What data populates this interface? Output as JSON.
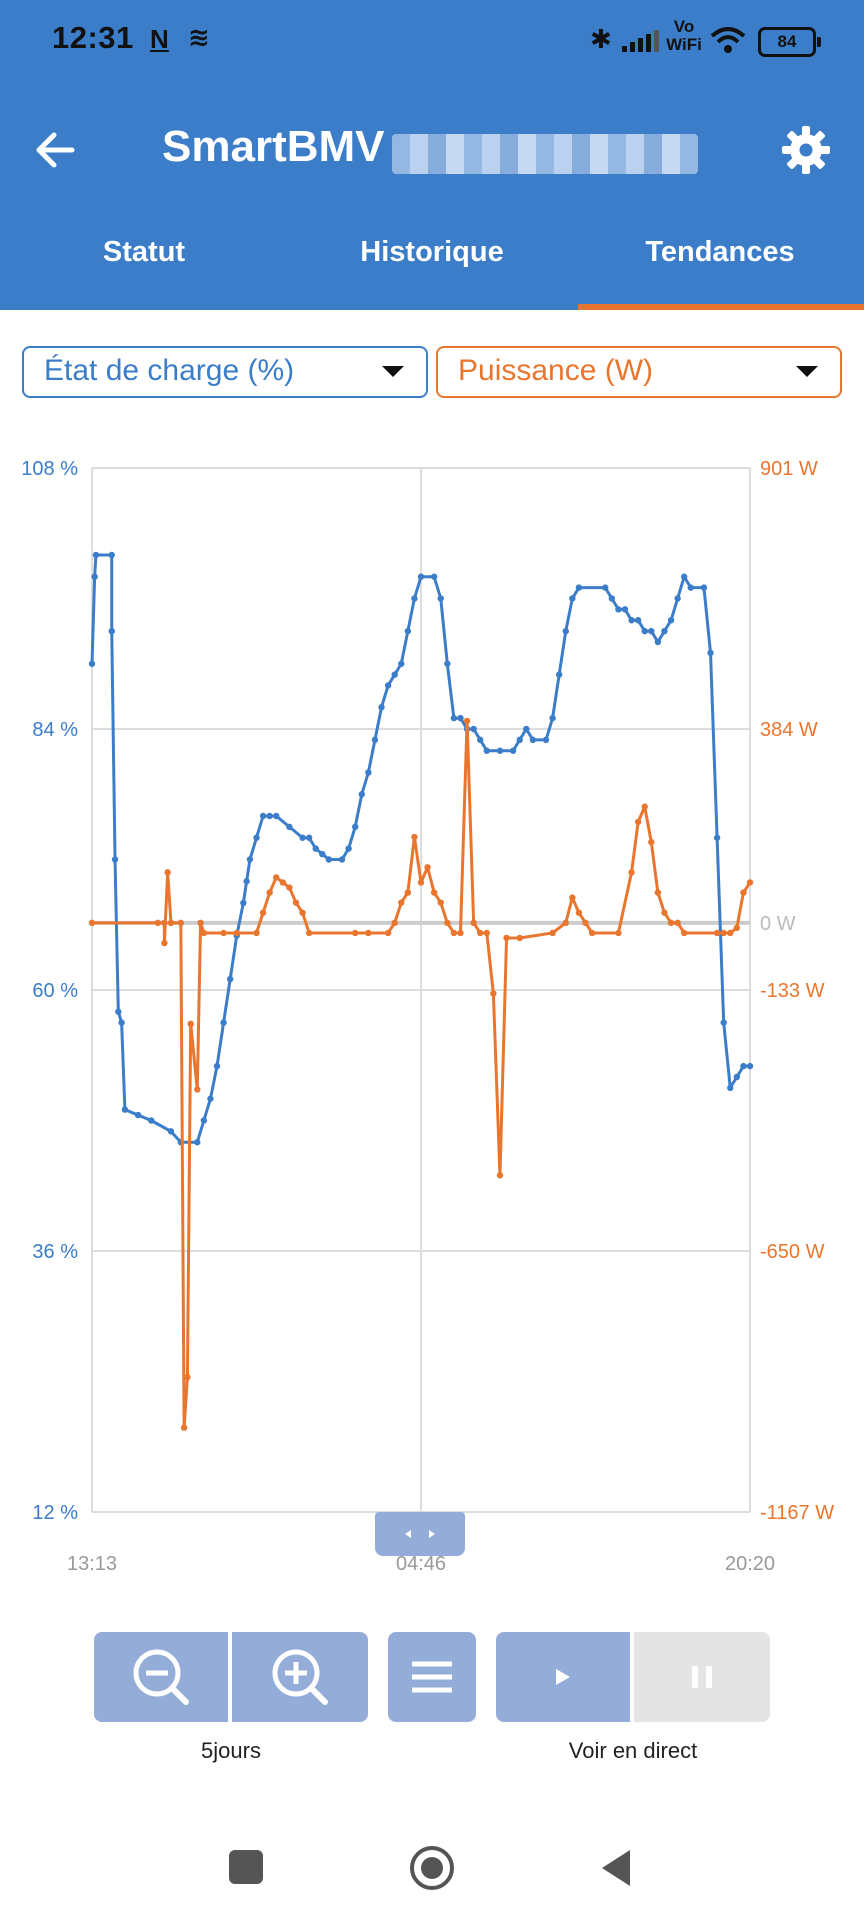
{
  "status_bar": {
    "time": "12:31",
    "notif_icons": [
      "n-icon",
      "layers-icon"
    ],
    "network": "Vo WiFi",
    "battery": "84"
  },
  "app": {
    "title": "SmartBMV",
    "back_icon": "arrow-left-icon",
    "settings_icon": "gear-icon"
  },
  "tabs": [
    {
      "label": "Statut",
      "active": false
    },
    {
      "label": "Historique",
      "active": false
    },
    {
      "label": "Tendances",
      "active": true
    }
  ],
  "selectors": {
    "left": {
      "value": "État de charge (%)",
      "color": "#3b7dc9"
    },
    "right": {
      "value": "Puissance (W)",
      "color": "#e8762f"
    }
  },
  "chart_data": {
    "type": "line",
    "x_ticks": [
      "13:13",
      "04:46",
      "20:20"
    ],
    "y_left": {
      "ticks": [
        "108 %",
        "84 %",
        "60 %",
        "36 %",
        "12 %"
      ],
      "range": [
        12,
        108
      ]
    },
    "y_right": {
      "ticks": [
        "901 W",
        "384 W",
        "-133 W",
        "-650 W",
        "-1167 W"
      ],
      "zero_label": "0 W",
      "range": [
        -1167,
        901
      ]
    },
    "grid": true,
    "series": [
      {
        "axis": "left",
        "color": "#3b7dc9",
        "points": [
          [
            0,
            90
          ],
          [
            0.004,
            98
          ],
          [
            0.006,
            100
          ],
          [
            0.03,
            100
          ],
          [
            0.03,
            93
          ],
          [
            0.035,
            72
          ],
          [
            0.04,
            58
          ],
          [
            0.045,
            57
          ],
          [
            0.05,
            49
          ],
          [
            0.07,
            48.5
          ],
          [
            0.09,
            48
          ],
          [
            0.12,
            47
          ],
          [
            0.135,
            46
          ],
          [
            0.16,
            46
          ],
          [
            0.17,
            48
          ],
          [
            0.18,
            50
          ],
          [
            0.19,
            53
          ],
          [
            0.2,
            57
          ],
          [
            0.21,
            61
          ],
          [
            0.22,
            65
          ],
          [
            0.23,
            68
          ],
          [
            0.235,
            70
          ],
          [
            0.24,
            72
          ],
          [
            0.25,
            74
          ],
          [
            0.26,
            76
          ],
          [
            0.27,
            76
          ],
          [
            0.28,
            76
          ],
          [
            0.3,
            75
          ],
          [
            0.32,
            74
          ],
          [
            0.33,
            74
          ],
          [
            0.34,
            73
          ],
          [
            0.35,
            72.5
          ],
          [
            0.36,
            72
          ],
          [
            0.38,
            72
          ],
          [
            0.39,
            73
          ],
          [
            0.4,
            75
          ],
          [
            0.41,
            78
          ],
          [
            0.42,
            80
          ],
          [
            0.43,
            83
          ],
          [
            0.44,
            86
          ],
          [
            0.45,
            88
          ],
          [
            0.46,
            89
          ],
          [
            0.47,
            90
          ],
          [
            0.48,
            93
          ],
          [
            0.49,
            96
          ],
          [
            0.5,
            98
          ],
          [
            0.52,
            98
          ],
          [
            0.53,
            96
          ],
          [
            0.54,
            90
          ],
          [
            0.55,
            85
          ],
          [
            0.56,
            85
          ],
          [
            0.57,
            84
          ],
          [
            0.58,
            84
          ],
          [
            0.59,
            83
          ],
          [
            0.6,
            82
          ],
          [
            0.62,
            82
          ],
          [
            0.64,
            82
          ],
          [
            0.65,
            83
          ],
          [
            0.66,
            84
          ],
          [
            0.67,
            83
          ],
          [
            0.69,
            83
          ],
          [
            0.7,
            85
          ],
          [
            0.71,
            89
          ],
          [
            0.72,
            93
          ],
          [
            0.73,
            96
          ],
          [
            0.74,
            97
          ],
          [
            0.78,
            97
          ],
          [
            0.79,
            96
          ],
          [
            0.8,
            95
          ],
          [
            0.81,
            95
          ],
          [
            0.82,
            94
          ],
          [
            0.83,
            94
          ],
          [
            0.84,
            93
          ],
          [
            0.85,
            93
          ],
          [
            0.86,
            92
          ],
          [
            0.87,
            93
          ],
          [
            0.88,
            94
          ],
          [
            0.89,
            96
          ],
          [
            0.9,
            98
          ],
          [
            0.91,
            97
          ],
          [
            0.93,
            97
          ],
          [
            0.94,
            91
          ],
          [
            0.95,
            74
          ],
          [
            0.96,
            57
          ],
          [
            0.97,
            51
          ],
          [
            0.98,
            52
          ],
          [
            0.99,
            53
          ],
          [
            1.0,
            53
          ]
        ]
      },
      {
        "axis": "right",
        "color": "#e8762f",
        "points": [
          [
            0,
            0
          ],
          [
            0.1,
            0
          ],
          [
            0.11,
            0
          ],
          [
            0.11,
            -40
          ],
          [
            0.115,
            100
          ],
          [
            0.12,
            0
          ],
          [
            0.135,
            0
          ],
          [
            0.14,
            -1000
          ],
          [
            0.145,
            -900
          ],
          [
            0.15,
            -200
          ],
          [
            0.16,
            -330
          ],
          [
            0.165,
            0
          ],
          [
            0.17,
            -20
          ],
          [
            0.2,
            -20
          ],
          [
            0.22,
            -20
          ],
          [
            0.25,
            -20
          ],
          [
            0.26,
            20
          ],
          [
            0.27,
            60
          ],
          [
            0.28,
            90
          ],
          [
            0.29,
            80
          ],
          [
            0.3,
            70
          ],
          [
            0.31,
            40
          ],
          [
            0.32,
            20
          ],
          [
            0.33,
            -20
          ],
          [
            0.4,
            -20
          ],
          [
            0.42,
            -20
          ],
          [
            0.45,
            -20
          ],
          [
            0.46,
            0
          ],
          [
            0.47,
            40
          ],
          [
            0.48,
            60
          ],
          [
            0.49,
            170
          ],
          [
            0.5,
            80
          ],
          [
            0.51,
            110
          ],
          [
            0.52,
            60
          ],
          [
            0.53,
            40
          ],
          [
            0.54,
            0
          ],
          [
            0.55,
            -20
          ],
          [
            0.56,
            -20
          ],
          [
            0.57,
            400
          ],
          [
            0.58,
            0
          ],
          [
            0.59,
            -20
          ],
          [
            0.6,
            -20
          ],
          [
            0.61,
            -140
          ],
          [
            0.62,
            -500
          ],
          [
            0.63,
            -30
          ],
          [
            0.65,
            -30
          ],
          [
            0.7,
            -20
          ],
          [
            0.72,
            0
          ],
          [
            0.73,
            50
          ],
          [
            0.74,
            20
          ],
          [
            0.75,
            0
          ],
          [
            0.76,
            -20
          ],
          [
            0.8,
            -20
          ],
          [
            0.82,
            100
          ],
          [
            0.83,
            200
          ],
          [
            0.84,
            230
          ],
          [
            0.85,
            160
          ],
          [
            0.86,
            60
          ],
          [
            0.87,
            20
          ],
          [
            0.88,
            0
          ],
          [
            0.89,
            0
          ],
          [
            0.9,
            -20
          ],
          [
            0.95,
            -20
          ],
          [
            0.96,
            -20
          ],
          [
            0.97,
            -20
          ],
          [
            0.98,
            -10
          ],
          [
            0.99,
            60
          ],
          [
            1.0,
            80
          ]
        ]
      }
    ]
  },
  "chart_nav": {
    "handle_icon": "left-right-arrows-icon"
  },
  "controls": {
    "zoom_out_icon": "zoom-out-icon",
    "zoom_in_icon": "zoom-in-icon",
    "menu_icon": "menu-icon",
    "play_icon": "play-icon",
    "pause_icon": "pause-icon",
    "zoom_label": "5jours",
    "live_label": "Voir en direct"
  },
  "navbar": {
    "icons": [
      "square-icon",
      "circle-icon",
      "triangle-back-icon"
    ]
  }
}
